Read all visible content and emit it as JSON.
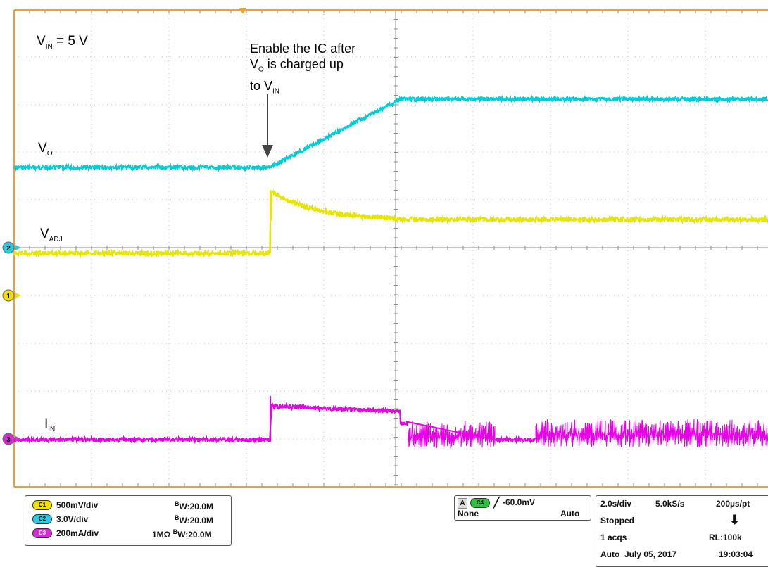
{
  "colors": {
    "grid_major": "#888888",
    "grid_minor": "#bbbbbb",
    "frame": "#f0a030",
    "ch_vo": "#00cdd8",
    "ch_vadj": "#e6e600",
    "ch_iin": "#e800e8",
    "ch1_marker": "#f0e000",
    "ch2_marker": "#30c8e0",
    "ch3_marker": "#d030d0",
    "arrow": "#444444"
  },
  "annotations": {
    "vin_main": "V",
    "vin_sub": "IN",
    "vin_rest": " = 5 V",
    "note_line1": "Enable the IC after",
    "note_line2_main": "V",
    "note_line2_sub": "O",
    "note_line2_rest": " is charged up",
    "note_line3_main": "to V",
    "note_line3_sub": "IN"
  },
  "trace_labels": {
    "vo_main": "V",
    "vo_sub": "O",
    "vadj_main": "V",
    "vadj_sub": "ADJ",
    "iin_main": "I",
    "iin_sub": "IN"
  },
  "markers": {
    "ch1": "1",
    "ch2": "2",
    "ch3": "3"
  },
  "channels": [
    {
      "tag": "C1",
      "scale": "500mV/div",
      "bw": "W:20.0M",
      "bw_prefix": "B",
      "impedance": ""
    },
    {
      "tag": "C2",
      "scale": "3.0V/div",
      "bw": "W:20.0M",
      "bw_prefix": "B",
      "impedance": ""
    },
    {
      "tag": "C3",
      "scale": "200mA/div",
      "bw": "W:20.0M",
      "bw_prefix": "B",
      "impedance": "1MΩ"
    }
  ],
  "trigger": {
    "mode_letter": "A",
    "source": "C4",
    "level": "-60.0mV",
    "coupling": "None",
    "sweep": "Auto"
  },
  "timebase": {
    "time_div": "2.0s/div",
    "sample_rate": "5.0kS/s",
    "pt_interval": "200µs/pt",
    "state": "Stopped",
    "acqs": "1 acqs",
    "record_length": "RL:100k",
    "mode": "Auto",
    "date": "July 05, 2017",
    "time": "19:03:04"
  }
}
